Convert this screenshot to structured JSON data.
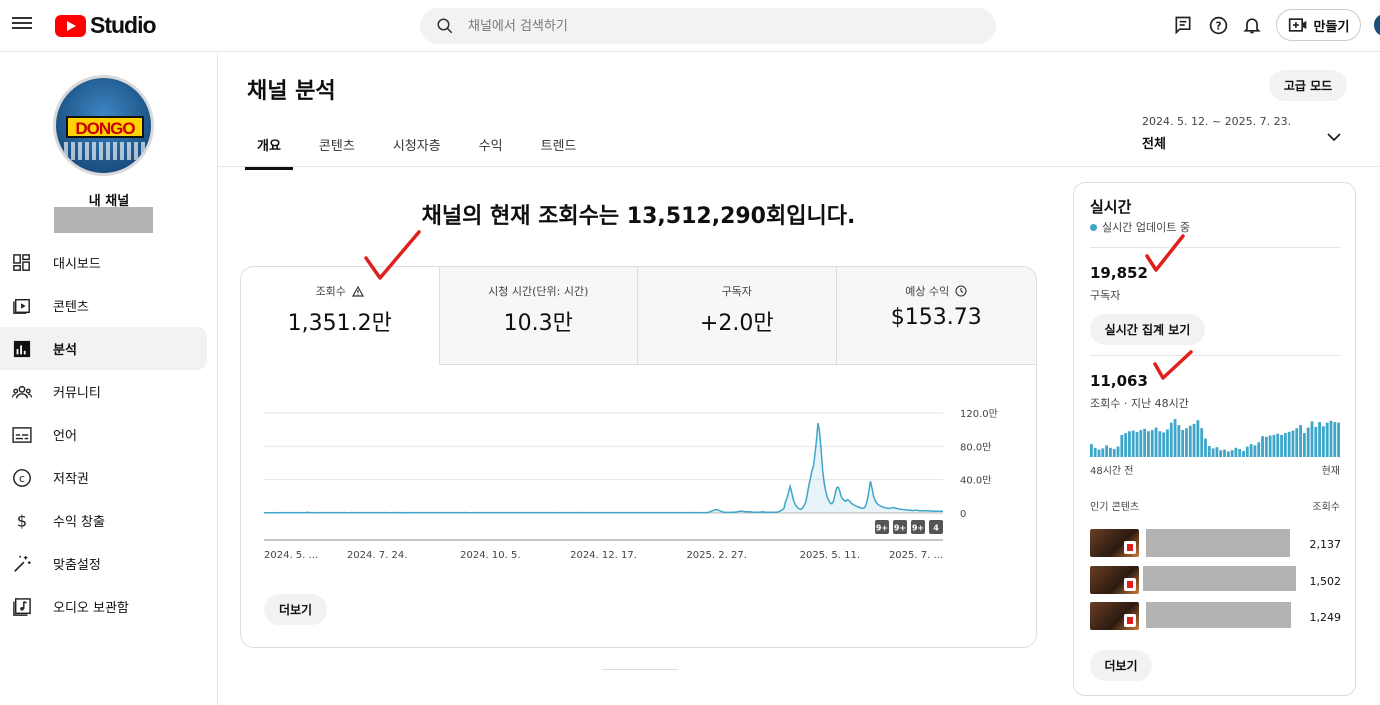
{
  "header": {
    "logo_text": "Studio",
    "search_placeholder": "채널에서 검색하기",
    "create_label": "만들기"
  },
  "sidebar": {
    "channel_label": "내 채널",
    "channel_logo_text": "DONGO",
    "items": [
      {
        "label": "대시보드",
        "icon": "dashboard-icon"
      },
      {
        "label": "콘텐츠",
        "icon": "content-icon"
      },
      {
        "label": "분석",
        "icon": "analytics-icon",
        "active": true
      },
      {
        "label": "커뮤니티",
        "icon": "community-icon"
      },
      {
        "label": "언어",
        "icon": "subtitles-icon"
      },
      {
        "label": "저작권",
        "icon": "copyright-icon"
      },
      {
        "label": "수익 창출",
        "icon": "dollar-icon"
      },
      {
        "label": "맞춤설정",
        "icon": "magic-wand-icon"
      },
      {
        "label": "오디오 보관함",
        "icon": "audio-library-icon"
      }
    ]
  },
  "page": {
    "title": "채널 분석",
    "advanced_mode": "고급 모드",
    "tabs": [
      "개요",
      "콘텐츠",
      "시청자층",
      "수익",
      "트렌드"
    ],
    "active_tab": "개요",
    "date_range": "2024. 5. 12. ~ 2025. 7. 23.",
    "date_label": "전체",
    "headline": "채널의 현재 조회수는 13,512,290회입니다."
  },
  "metrics": [
    {
      "label": "조회수",
      "value": "1,351.2만",
      "icon": "warning-icon",
      "selected": true
    },
    {
      "label": "시청 시간(단위: 시간)",
      "value": "10.3만"
    },
    {
      "label": "구독자",
      "value": "+2.0만"
    },
    {
      "label": "예상 수익",
      "value": "$153.73",
      "icon": "clock-icon"
    }
  ],
  "more_label": "더보기",
  "chart_data": {
    "type": "area",
    "x_ticks": [
      "2024. 5. ...",
      "2024. 7. 24.",
      "2024. 10. 5.",
      "2024. 12. 17.",
      "2025. 2. 27.",
      "2025. 5. 11.",
      "2025. 7. ..."
    ],
    "y_ticks": [
      "120.0만",
      "80.0만",
      "40.0만",
      "0"
    ],
    "ylim": [
      0,
      1200000
    ],
    "badges": [
      "9+",
      "9+",
      "9+",
      "4"
    ],
    "series": [
      {
        "color": "#3ea6c8",
        "values": [
          4000,
          3800,
          4200,
          4100,
          4000,
          3900,
          4300,
          4100,
          4000,
          4200,
          4400,
          4100,
          4300,
          4500,
          4200,
          4000,
          4100,
          4300,
          4600,
          4200,
          4100,
          4300,
          4200,
          4400,
          4300,
          4100,
          4200,
          4500,
          9000,
          6000,
          4500,
          4400,
          4300,
          4200,
          4300,
          4200,
          4100,
          4300,
          4500,
          4200,
          4400,
          4300,
          4600,
          4500,
          4300,
          4200,
          4400,
          4500,
          4300,
          4200,
          4300,
          4500,
          4400,
          4300,
          4200,
          4100,
          4300,
          4400,
          4500,
          4300,
          4200,
          4300,
          4400,
          4200,
          4300,
          4500,
          4600,
          4400,
          4300,
          4200,
          4300,
          4400,
          4300,
          4200,
          4400,
          4500,
          4300,
          4200,
          4300,
          4400,
          4300,
          4200,
          4100,
          4300,
          4400,
          4500,
          4600,
          4400,
          4300,
          4200,
          4100,
          4300,
          4200,
          4500,
          4400,
          4300,
          4200,
          4300,
          4400,
          4300,
          4400,
          4500,
          4300,
          4200,
          4300,
          4400,
          4200,
          4300,
          4500,
          4400,
          4300,
          4200,
          4300,
          4400,
          4500,
          4300,
          4600,
          4400,
          4200,
          4300,
          4500,
          4400,
          4200,
          4300,
          4500,
          4600,
          4400,
          4300,
          4200,
          4300,
          4400,
          4500,
          4300,
          4200,
          4100,
          4300,
          4400,
          4200,
          4300,
          4500,
          4400,
          4300,
          4200,
          4300,
          4400,
          4500,
          4300,
          4200,
          4300,
          4400,
          4300,
          4500,
          4400,
          4300,
          4200,
          4300,
          4500,
          4400,
          4300,
          4200,
          4300,
          4400,
          4500,
          4300,
          4200,
          4300,
          4400,
          4300,
          4500,
          4400,
          4300,
          4200,
          4300,
          4400,
          4500,
          4300,
          4600,
          4400,
          4200,
          4300,
          4500,
          4400,
          4300,
          4200,
          4300,
          4400,
          4500,
          4300,
          4200,
          4100,
          4300,
          4400,
          4500,
          4600,
          4400,
          4300,
          4200,
          4300,
          4400,
          4500,
          4300,
          4200,
          4300,
          4400,
          4300,
          4500,
          4400,
          4300,
          4200,
          4300,
          4500,
          4400,
          4300,
          4200,
          4300,
          4400,
          4500,
          4300,
          4200,
          4300,
          4400,
          4300,
          4500,
          4400,
          4300,
          4200,
          4300,
          4400,
          4500,
          4300,
          4600,
          4400,
          4200,
          4300,
          4500,
          4400,
          4300,
          4200,
          4300,
          4400,
          4500,
          4300,
          4200,
          4300,
          4400,
          4300,
          4500,
          4400,
          4300,
          4200,
          4300,
          4400,
          4500,
          4300,
          4600,
          4400,
          4300,
          4200,
          4300,
          4500,
          4400,
          4300,
          4200,
          4300,
          4400,
          4500,
          4300,
          4200,
          4300,
          4400,
          4300,
          4500,
          4400,
          4300,
          4200,
          4300,
          4400,
          4500,
          4300,
          4600,
          4400,
          4200,
          4300,
          4500,
          4400,
          4300,
          4500,
          6000,
          9000,
          14000,
          22000,
          30000,
          36000,
          40000,
          38000,
          30000,
          22000,
          15000,
          10000,
          8000,
          7000,
          6000,
          7000,
          8000,
          9000,
          10000,
          12000,
          16000,
          20000,
          24000,
          21000,
          18000,
          16000,
          15000,
          14000,
          13000,
          12000,
          10000,
          9000,
          8000,
          9000,
          10000,
          12000,
          14000,
          12000,
          10000,
          9000,
          8000,
          7000,
          7500,
          8000,
          9000,
          10000,
          12000,
          20000,
          30000,
          40000,
          60000,
          140000,
          180000,
          260000,
          320000,
          240000,
          160000,
          110000,
          80000,
          60000,
          50000,
          45000,
          60000,
          90000,
          130000,
          220000,
          320000,
          410000,
          500000,
          560000,
          700000,
          880000,
          1080000,
          980000,
          760000,
          520000,
          360000,
          260000,
          190000,
          150000,
          120000,
          110000,
          140000,
          220000,
          300000,
          310000,
          270000,
          200000,
          170000,
          150000,
          140000,
          160000,
          150000,
          130000,
          110000,
          100000,
          90000,
          80000,
          72000,
          66000,
          60000,
          58000,
          62000,
          90000,
          160000,
          260000,
          380000,
          300000,
          200000,
          150000,
          120000,
          100000,
          90000,
          80000,
          72000,
          66000,
          62000,
          58000,
          55000,
          58000,
          62000,
          66000,
          60000,
          55000,
          50000,
          46000,
          44000,
          42000,
          40000,
          38000,
          36000,
          34000,
          32000,
          30000,
          30000,
          32000,
          34000,
          30000,
          28000,
          27000,
          26000,
          28000,
          27000,
          26000,
          25000,
          24000,
          23000,
          22000,
          21000,
          20000,
          21000,
          22000,
          21000,
          20000
        ]
      }
    ]
  },
  "realtime": {
    "title": "실시간",
    "status": "실시간 업데이트 중",
    "subscribers_value": "19,852",
    "subscribers_label": "구독자",
    "view_button": "실시간 집계 보기",
    "views_value": "11,063",
    "views_label": "조회수 · 지난 48시간",
    "axis_start": "48시간 전",
    "axis_end": "현재",
    "hourly_views": [
      210,
      150,
      120,
      140,
      190,
      150,
      130,
      170,
      360,
      390,
      420,
      430,
      410,
      440,
      460,
      420,
      440,
      480,
      420,
      400,
      450,
      560,
      620,
      520,
      440,
      470,
      510,
      540,
      600,
      470,
      300,
      180,
      140,
      160,
      110,
      120,
      90,
      110,
      150,
      130,
      100,
      170,
      210,
      190,
      240,
      340,
      330,
      350,
      360,
      380,
      360,
      390,
      410,
      430,
      470,
      520,
      390,
      480,
      580,
      490,
      570,
      500,
      560,
      590,
      570,
      560
    ],
    "popular_header": "인기 콘텐츠",
    "views_header": "조회수",
    "popular": [
      {
        "views": "2,137"
      },
      {
        "views": "1,502"
      },
      {
        "views": "1,249"
      }
    ],
    "more_label": "더보기"
  }
}
